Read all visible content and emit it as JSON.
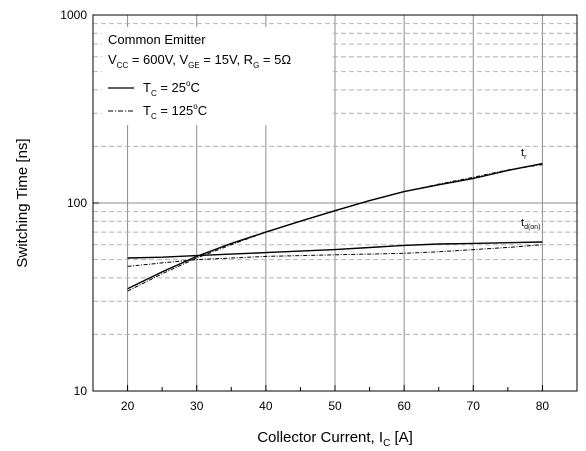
{
  "chart_data": {
    "type": "line",
    "xlabel": "Collector Current, I",
    "xlabel_sub": "C",
    "xlabel_unit": " [A]",
    "ylabel": "Switching Time [ns]",
    "xlim": [
      15,
      85
    ],
    "ylim": [
      10,
      1000
    ],
    "yscale": "log",
    "grid": true,
    "x_ticks": [
      20,
      30,
      40,
      50,
      60,
      70,
      80
    ],
    "y_ticks": [
      {
        "value": 10,
        "label": "10"
      },
      {
        "value": 100,
        "label": "100"
      },
      {
        "value": 1000,
        "label": "1000"
      }
    ],
    "legend": {
      "placement": "top-left",
      "title": "Common Emitter",
      "conditions": {
        "vcc_main": "V",
        "vcc_sub": "CC",
        "vcc_val": " = 600V, V",
        "vge_sub": "GE",
        "vge_val": " = 15V, R",
        "rg_sub": "G",
        "rg_val": " = 5Ω"
      },
      "entries": [
        {
          "main": "T",
          "sub": "C",
          "val": " = 25",
          "sup": "o",
          "unit": "C",
          "style": "solid"
        },
        {
          "main": "T",
          "sub": "C",
          "val": " = 125",
          "sup": "o",
          "unit": "C",
          "style": "dashdot"
        }
      ]
    },
    "annotations": [
      {
        "main": "t",
        "sub": "r",
        "near": "tr curves"
      },
      {
        "main": "t",
        "sub": "d(on)",
        "near": "td(on) curves"
      }
    ],
    "series": [
      {
        "curve": "tr",
        "temp": "25C",
        "style": "solid",
        "x": [
          20,
          25,
          30,
          35,
          40,
          45,
          50,
          55,
          60,
          65,
          70,
          75,
          80
        ],
        "y": [
          35,
          43,
          52,
          61,
          70,
          80,
          91,
          103,
          115,
          125,
          135,
          149,
          162
        ]
      },
      {
        "curve": "tr",
        "temp": "125C",
        "style": "dashdot",
        "x": [
          20,
          25,
          30,
          35,
          40,
          45,
          50,
          55,
          60,
          65,
          70,
          75,
          80
        ],
        "y": [
          34,
          42,
          51,
          60,
          70,
          80,
          91,
          103,
          115,
          126,
          137,
          150,
          160
        ]
      },
      {
        "curve": "td(on)",
        "temp": "25C",
        "style": "solid",
        "x": [
          20,
          25,
          30,
          35,
          40,
          45,
          50,
          55,
          60,
          65,
          70,
          75,
          80
        ],
        "y": [
          51,
          51.5,
          52.5,
          53.5,
          54.5,
          55.5,
          56.5,
          58,
          59.5,
          60.5,
          61,
          61.5,
          62
        ]
      },
      {
        "curve": "td(on)",
        "temp": "125C",
        "style": "dashdot",
        "x": [
          20,
          25,
          30,
          35,
          40,
          45,
          50,
          55,
          60,
          65,
          70,
          75,
          80
        ],
        "y": [
          46,
          48,
          50,
          51,
          52,
          52.5,
          53,
          53.5,
          54,
          55,
          56.5,
          58,
          60
        ]
      }
    ]
  }
}
